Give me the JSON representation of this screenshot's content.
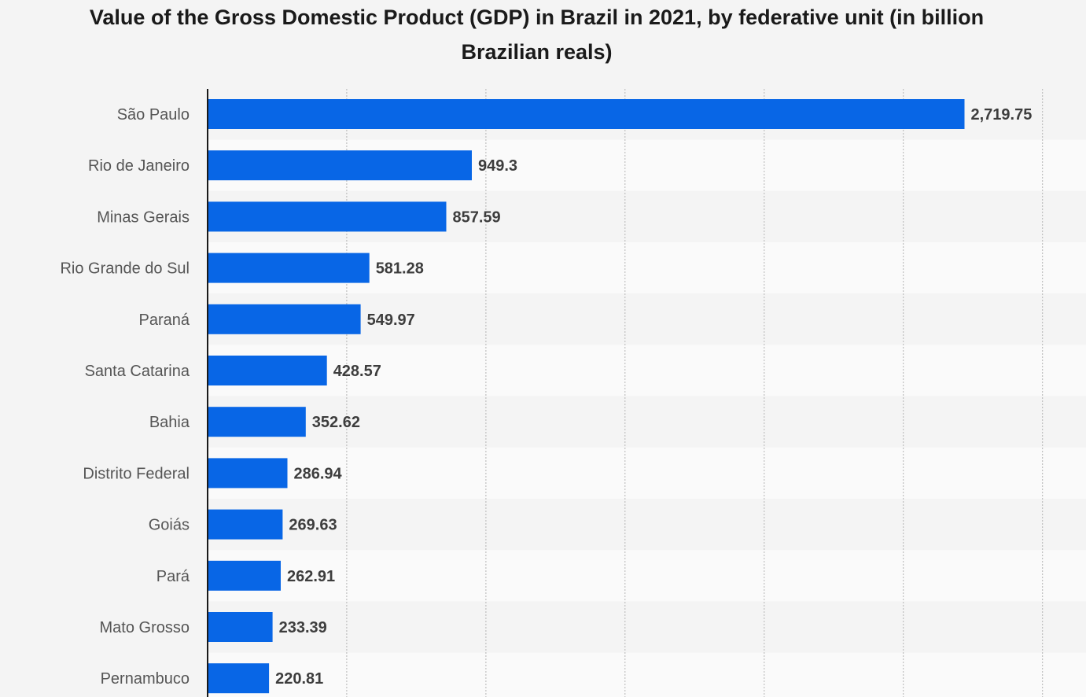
{
  "chart_data": {
    "type": "bar",
    "orientation": "horizontal",
    "title": "Value of the Gross Domestic Product (GDP) in Brazil in 2021, by federative unit (in billion Brazilian reals)",
    "xlabel": "",
    "ylabel": "",
    "categories": [
      "São Paulo",
      "Rio de Janeiro",
      "Minas Gerais",
      "Rio Grande do Sul",
      "Paraná",
      "Santa Catarina",
      "Bahia",
      "Distrito Federal",
      "Goiás",
      "Pará",
      "Mato Grosso",
      "Pernambuco"
    ],
    "values": [
      2719.75,
      949.3,
      857.59,
      581.28,
      549.97,
      428.57,
      352.62,
      286.94,
      269.63,
      262.91,
      233.39,
      220.81
    ],
    "value_labels": [
      "2,719.75",
      "949.3",
      "857.59",
      "581.28",
      "549.97",
      "428.57",
      "352.62",
      "286.94",
      "269.63",
      "262.91",
      "233.39",
      "220.81"
    ],
    "xlim": [
      0,
      3000
    ],
    "grid": true,
    "legend": "none",
    "colors": {
      "bar": "#0866e6",
      "label": "#555555",
      "value_label": "#3d3d3d",
      "background": "#f4f4f4",
      "row_alt": "#fafafa",
      "grid": "#b5b5b5",
      "axis": "#1a1a1a"
    }
  }
}
